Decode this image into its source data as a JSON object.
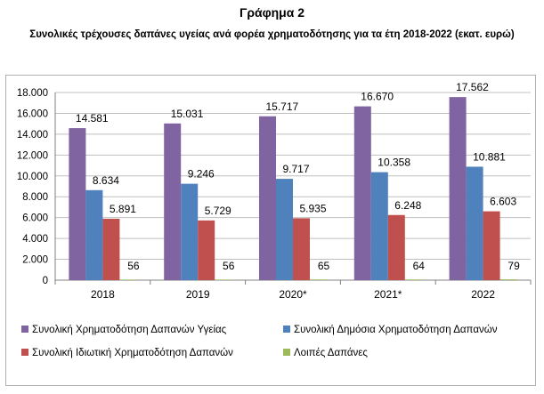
{
  "title": "Γράφημα 2",
  "subtitle": "Συνολικές τρέχουσες δαπάνες υγείας ανά φορέα χρηματοδότησης για τα έτη 2018-2022 (εκατ. ευρώ)",
  "chart_data": {
    "type": "bar",
    "categories": [
      "2018",
      "2019",
      "2020*",
      "2021*",
      "2022"
    ],
    "series": [
      {
        "name": "Συνολική Χρηματοδότηση Δαπανών Υγείας",
        "color": "#8064a2",
        "values": [
          14581,
          15031,
          15717,
          16670,
          17562
        ],
        "labels": [
          "14.581",
          "15.031",
          "15.717",
          "16.670",
          "17.562"
        ]
      },
      {
        "name": "Συνολική Δημόσια Χρηματοδότηση Δαπανών",
        "color": "#4f81bd",
        "values": [
          8634,
          9246,
          9717,
          10358,
          10881
        ],
        "labels": [
          "8.634",
          "9.246",
          "9.717",
          "10.358",
          "10.881"
        ]
      },
      {
        "name": "Συνολική Ιδιωτική Χρηματοδότηση Δαπανών",
        "color": "#c0504d",
        "values": [
          5891,
          5729,
          5935,
          6248,
          6603
        ],
        "labels": [
          "5.891",
          "5.729",
          "5.935",
          "6.248",
          "6.603"
        ]
      },
      {
        "name": "Λοιπές Δαπάνες",
        "color": "#9bbb59",
        "values": [
          56,
          56,
          65,
          64,
          79
        ],
        "labels": [
          "56",
          "56",
          "65",
          "64",
          "79"
        ]
      }
    ],
    "ylim": [
      0,
      18000
    ],
    "yticks": [
      0,
      2000,
      4000,
      6000,
      8000,
      10000,
      12000,
      14000,
      16000,
      18000
    ],
    "ytick_labels": [
      "0",
      "2.000",
      "4.000",
      "6.000",
      "8.000",
      "10.000",
      "12.000",
      "14.000",
      "16.000",
      "18.000"
    ],
    "grid": true,
    "legend_position": "bottom"
  }
}
